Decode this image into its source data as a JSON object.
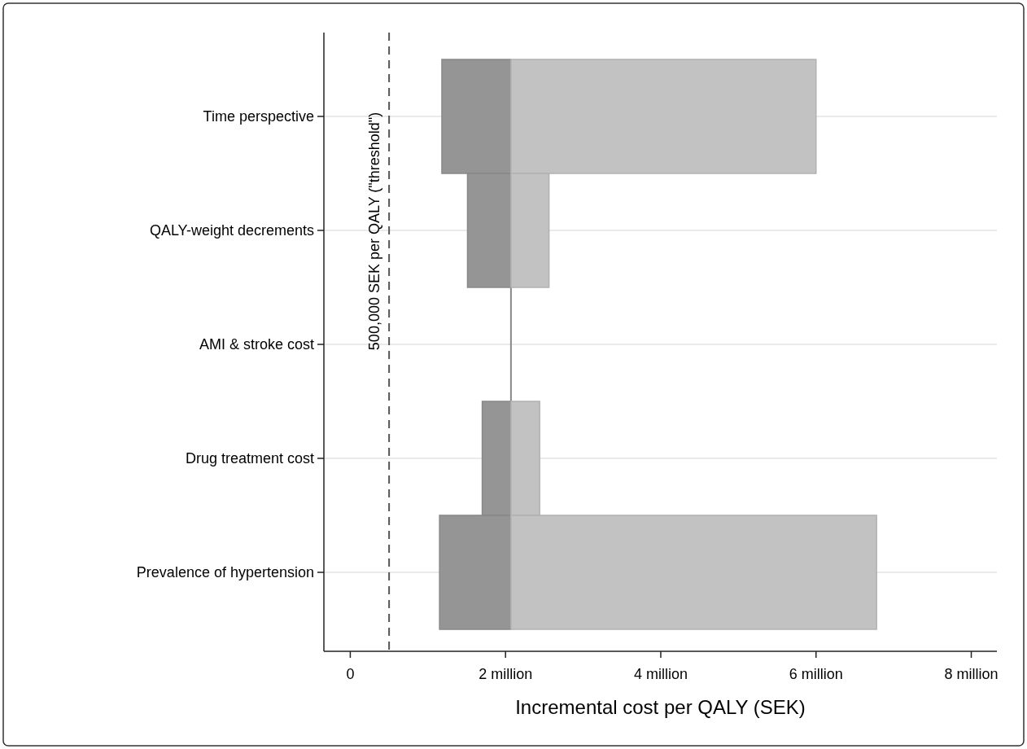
{
  "chart_data": {
    "type": "bar",
    "orientation": "horizontal",
    "stacked": false,
    "xlabel": "Incremental cost per QALY (SEK)",
    "categories": [
      "Time perspective",
      "QALY-weight decrements",
      "AMI & stroke cost",
      "Drug treatment cost",
      "Prevalence of hypertension"
    ],
    "series": [
      {
        "color": "#959595",
        "base": [
          1.18,
          1.51,
          2.07,
          1.7,
          1.15
        ],
        "values": [
          0.89,
          0.56,
          0,
          0.37,
          0.92
        ]
      },
      {
        "color": "#c2c2c2",
        "base": [
          2.07,
          2.07,
          null,
          2.07,
          2.07
        ],
        "values": [
          3.93,
          0.49,
          null,
          0.37,
          4.71
        ]
      }
    ],
    "xlim": [
      -0.34,
      8.33
    ],
    "xticks": [
      0,
      {
        "value": 2,
        "label": "2 million"
      },
      {
        "value": 4,
        "label": "4 million"
      },
      {
        "value": 6,
        "label": "6 million"
      },
      {
        "value": 8,
        "label": "8 million"
      }
    ],
    "ref_lines": [
      {
        "axis": "x",
        "value": 0.5,
        "label": "500,000 SEK per QALY (\"threshold\")",
        "color": "#555555",
        "line_style": "dashed"
      }
    ],
    "grid": "y"
  }
}
